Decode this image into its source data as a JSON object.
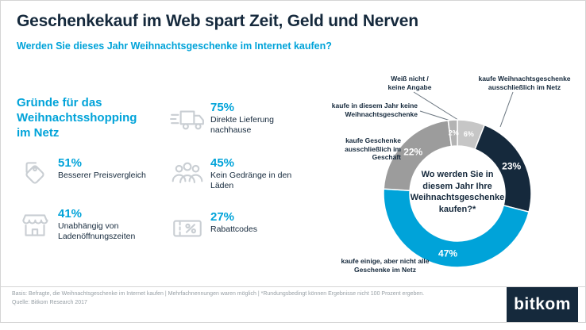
{
  "header": {
    "title": "Geschenkekauf im Web spart Zeit, Geld und Nerven",
    "subtitle": "Werden Sie dieses Jahr Weihnachtsgeschenke im Internet kaufen?"
  },
  "reasons": {
    "heading": "Gründe für das Weihnachtsshopping im Netz",
    "items": [
      {
        "icon": "price-tags-icon",
        "value": "51%",
        "label": "Besserer Preisvergleich"
      },
      {
        "icon": "storefront-icon",
        "value": "41%",
        "label": "Unabhängig von Ladenöffnungszeiten"
      },
      {
        "icon": "delivery-truck-icon",
        "value": "75%",
        "label": "Direkte Lieferung nachhause"
      },
      {
        "icon": "people-crowd-icon",
        "value": "45%",
        "label": "Kein Gedränge in den Läden"
      },
      {
        "icon": "discount-ticket-icon",
        "value": "27%",
        "label": "Rabattcodes"
      }
    ]
  },
  "chart_data": {
    "type": "pie",
    "donut": true,
    "start_angle": "top",
    "direction": "clockwise",
    "title": "Wo werden Sie in diesem Jahr Ihre Weihnachtsgeschenke kaufen?*",
    "segments": [
      {
        "label": "Weiß nicht / keine Angabe",
        "value": 6,
        "color": "#c6c6c6"
      },
      {
        "label": "kaufe Weihnachtsgeschenke ausschließlich im Netz",
        "value": 23,
        "color": "#15293c"
      },
      {
        "label": "kaufe einige, aber nicht alle Geschenke im Netz",
        "value": 47,
        "color": "#00a3d9"
      },
      {
        "label": "kaufe Geschenke ausschließlich im Geschäft",
        "value": 22,
        "color": "#9c9c9c"
      },
      {
        "label": "kaufe in diesem Jahr keine Weihnachtsgeschenke",
        "value": 2,
        "color": "#b3b3b3"
      }
    ]
  },
  "footer": {
    "basis": "Basis: Befragte, die Weihnachtsgeschenke im Internet kaufen | Mehrfachnennungen waren möglich | *Rundungsbedingt können Ergebnisse nicht 100 Prozent ergeben.",
    "quelle": "Quelle: Bitkom Research 2017",
    "logo": "bitkom"
  },
  "colors": {
    "navy": "#15293c",
    "blue": "#00a3d9",
    "icon_gray": "#c9ced3",
    "footer_gray": "#98a0a6"
  }
}
